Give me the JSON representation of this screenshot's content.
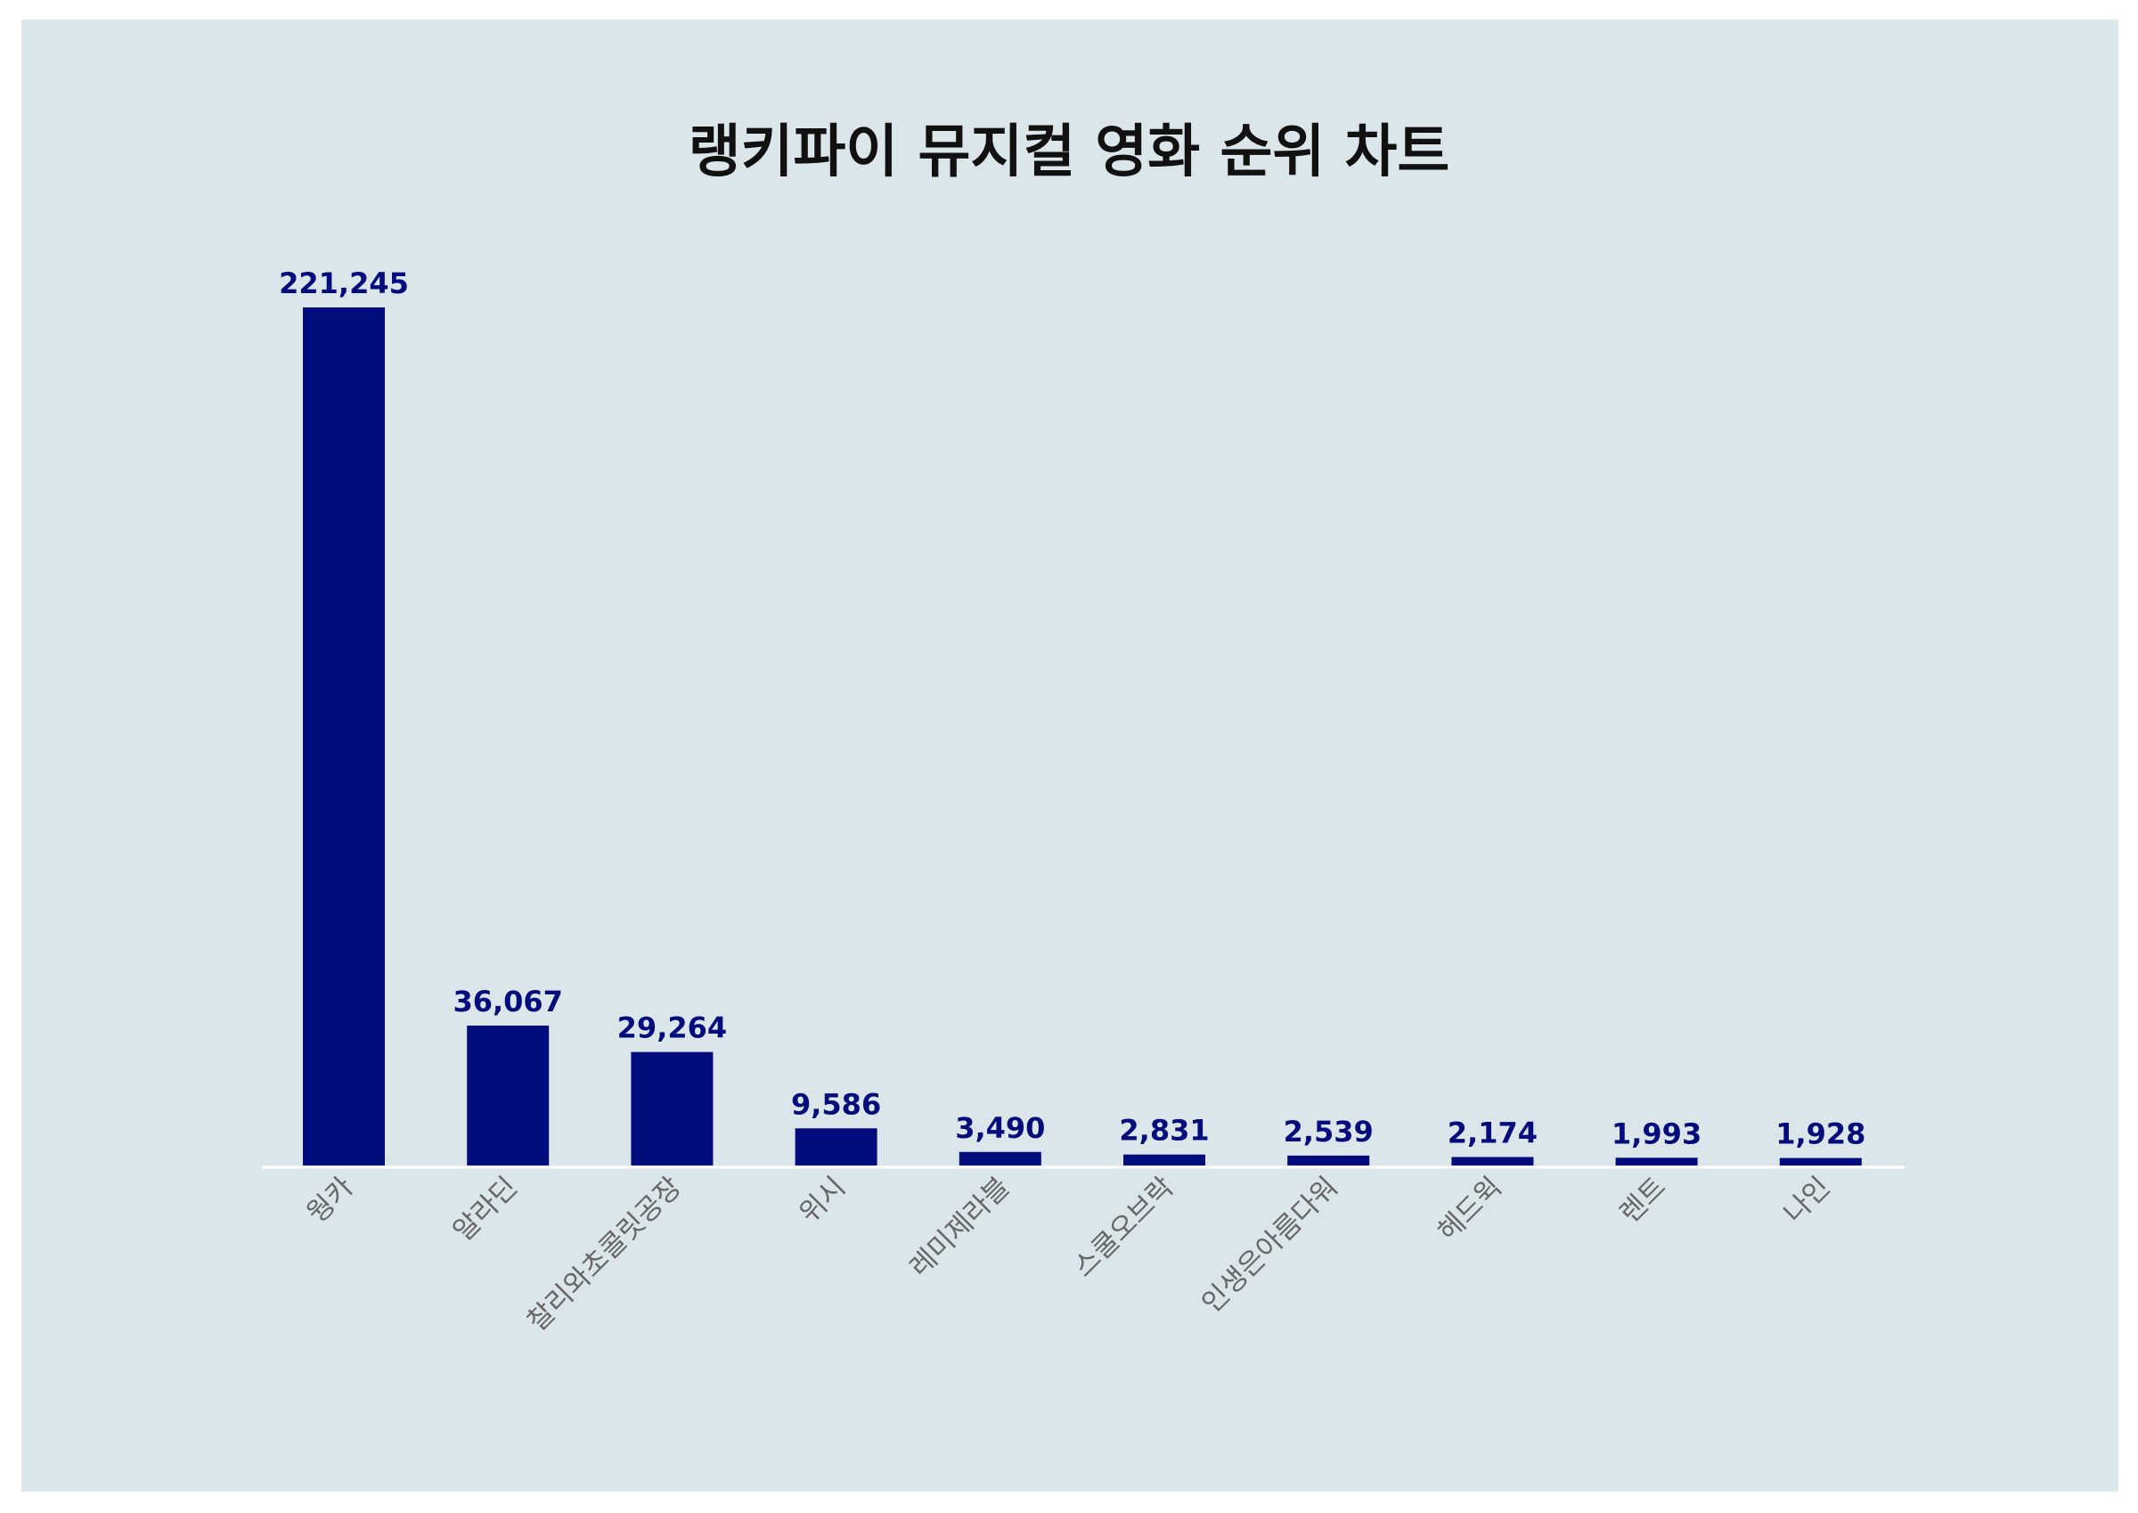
{
  "chart_data": {
    "type": "bar",
    "title": "랭키파이 뮤지컬 영화 순위 차트",
    "xlabel": "",
    "ylabel": "",
    "categories": [
      "웡카",
      "알라딘",
      "찰리와초콜릿공장",
      "위시",
      "레미제라블",
      "스쿨오브락",
      "인생은아름다워",
      "헤드윅",
      "렌트",
      "나인"
    ],
    "values": [
      221245,
      36067,
      29264,
      9586,
      3490,
      2831,
      2539,
      2174,
      1993,
      1928
    ],
    "value_labels": [
      "221,245",
      "36,067",
      "29,264",
      "9,586",
      "3,490",
      "2,831",
      "2,539",
      "2,174",
      "1,993",
      "1,928"
    ],
    "ylim": [
      0,
      221245
    ],
    "grid": false,
    "legend": "none",
    "colors": {
      "bar": "#030c7c",
      "value_label": "#030c7c",
      "tick_label": "#666666",
      "background": "#dbe6eb",
      "baseline": "#ffffff"
    }
  }
}
